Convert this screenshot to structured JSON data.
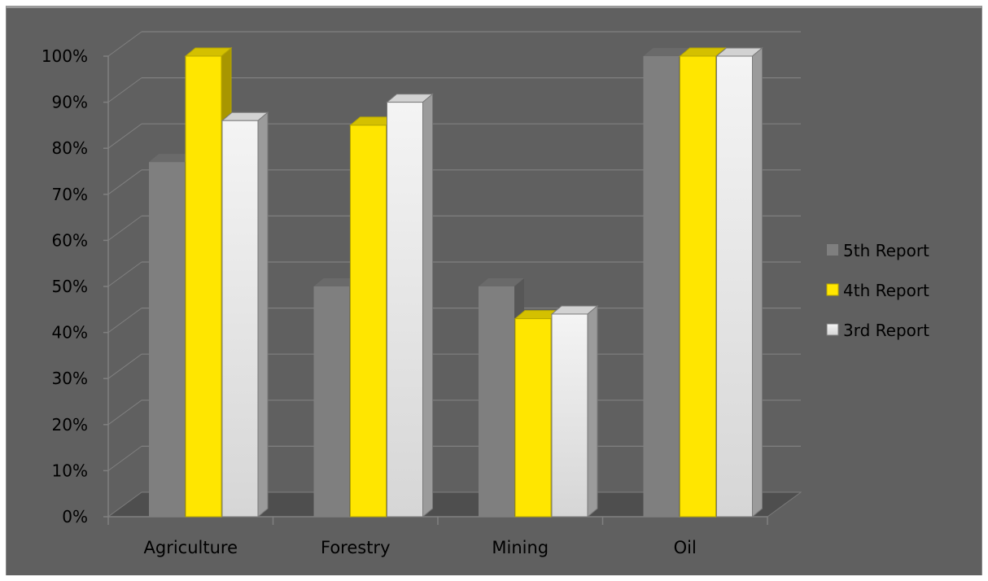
{
  "chart_data": {
    "type": "bar",
    "categories": [
      "Agriculture",
      "Forestry",
      "Mining",
      "Oil"
    ],
    "series": [
      {
        "name": "5th Report",
        "values": [
          77,
          50,
          50,
          100
        ]
      },
      {
        "name": "4th Report",
        "values": [
          100,
          85,
          43,
          100
        ]
      },
      {
        "name": "3rd Report",
        "values": [
          86,
          90,
          44,
          100
        ]
      }
    ],
    "yticks": [
      "0%",
      "10%",
      "20%",
      "30%",
      "40%",
      "50%",
      "60%",
      "70%",
      "80%",
      "90%",
      "100%"
    ],
    "ylim": [
      0,
      100
    ],
    "grid": true,
    "legend": "right",
    "colors": {
      "background": "#606060",
      "5th Report": "#7f7f7f",
      "4th Report": "#ffe600",
      "3rd Report": "#eeeeee",
      "gridline": "#808080",
      "text": "#000000"
    }
  }
}
